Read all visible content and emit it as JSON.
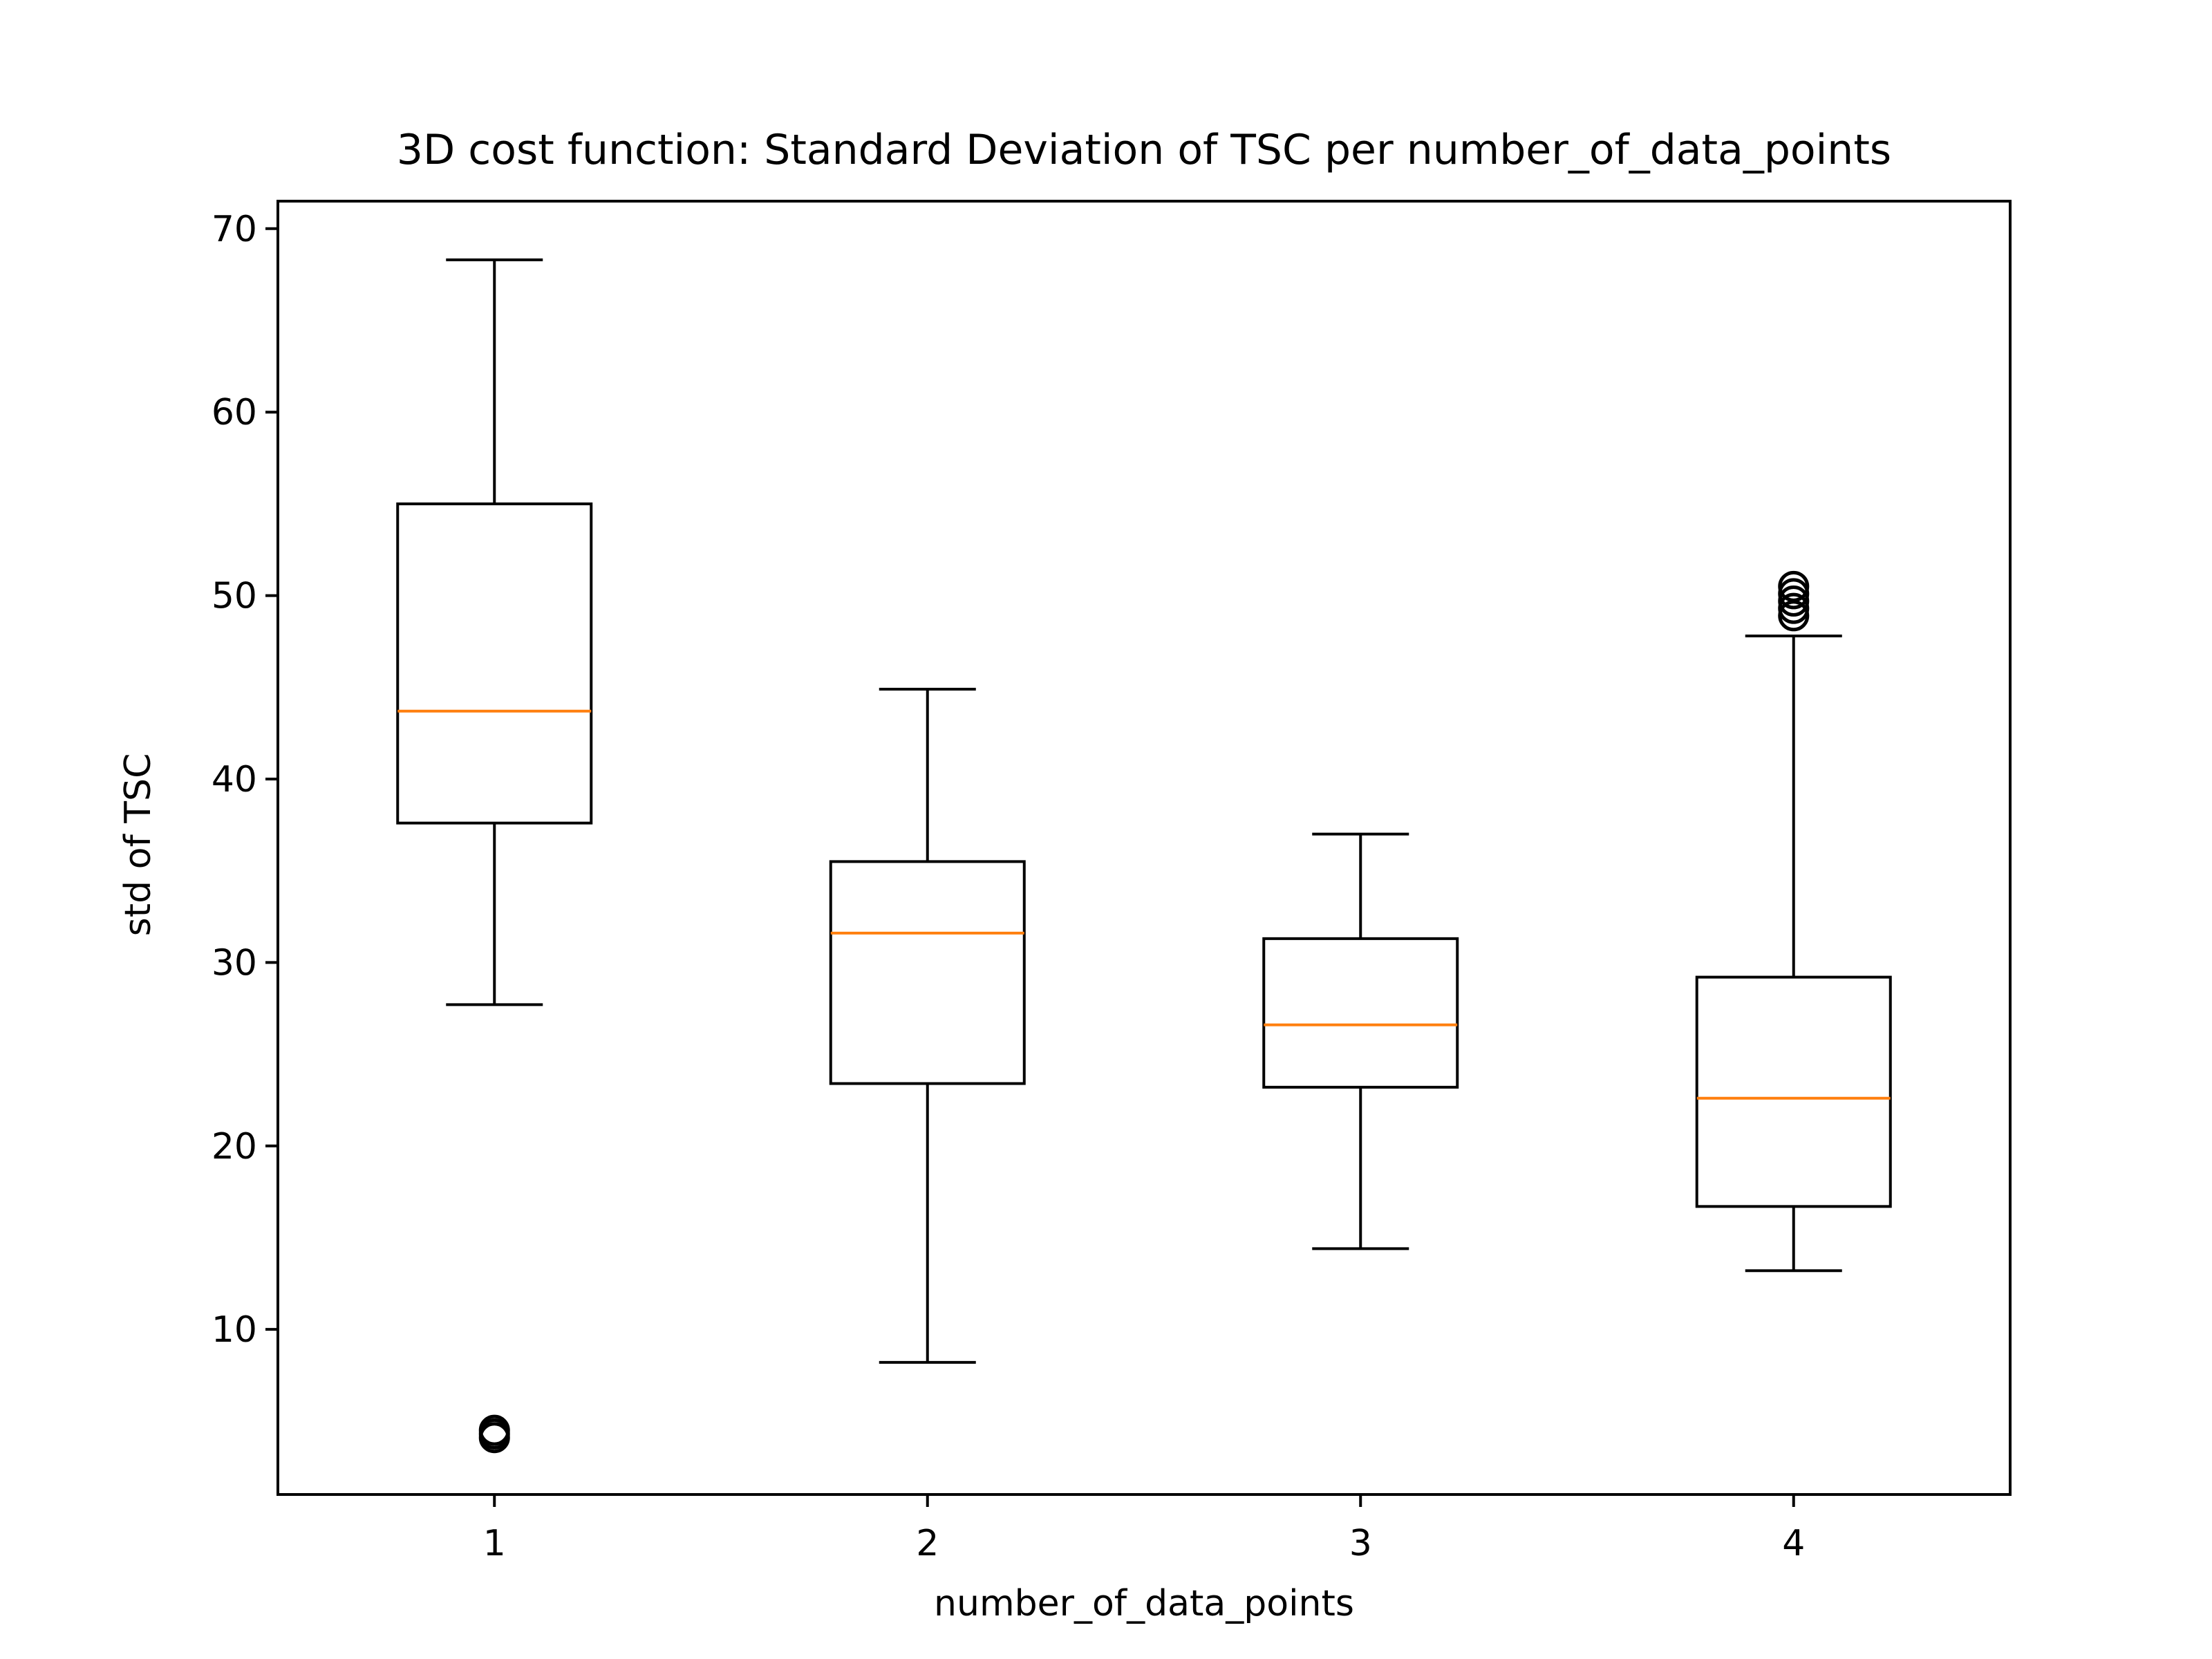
{
  "chart_data": {
    "type": "boxplot",
    "title": "3D cost function: Standard Deviation of TSC per number_of_data_points",
    "xlabel": "number_of_data_points",
    "ylabel": "std of TSC",
    "categories": [
      "1",
      "2",
      "3",
      "4"
    ],
    "ylim": [
      1.0,
      71.5
    ],
    "xlim": [
      0.5,
      4.5
    ],
    "yticks": [
      10,
      20,
      30,
      40,
      50,
      60,
      70
    ],
    "ytick_labels": [
      "10",
      "20",
      "30",
      "40",
      "50",
      "60",
      "70"
    ],
    "grid": false,
    "boxes": [
      {
        "category": "1",
        "whisker_low": 27.7,
        "q1": 37.6,
        "median": 43.7,
        "q3": 55.0,
        "whisker_high": 68.3,
        "outliers": [
          4.1,
          4.3,
          4.5
        ]
      },
      {
        "category": "2",
        "whisker_low": 8.2,
        "q1": 23.4,
        "median": 31.6,
        "q3": 35.5,
        "whisker_high": 44.9,
        "outliers": []
      },
      {
        "category": "3",
        "whisker_low": 14.4,
        "q1": 23.2,
        "median": 26.6,
        "q3": 31.3,
        "whisker_high": 37.0,
        "outliers": []
      },
      {
        "category": "4",
        "whisker_low": 13.2,
        "q1": 16.7,
        "median": 22.6,
        "q3": 29.2,
        "whisker_high": 47.8,
        "outliers": [
          48.9,
          49.3,
          49.7,
          50.1,
          50.5
        ]
      }
    ],
    "colors": {
      "box": "#000000",
      "median": "#ff7f0e",
      "axes": "#000000",
      "background": "#ffffff"
    }
  }
}
